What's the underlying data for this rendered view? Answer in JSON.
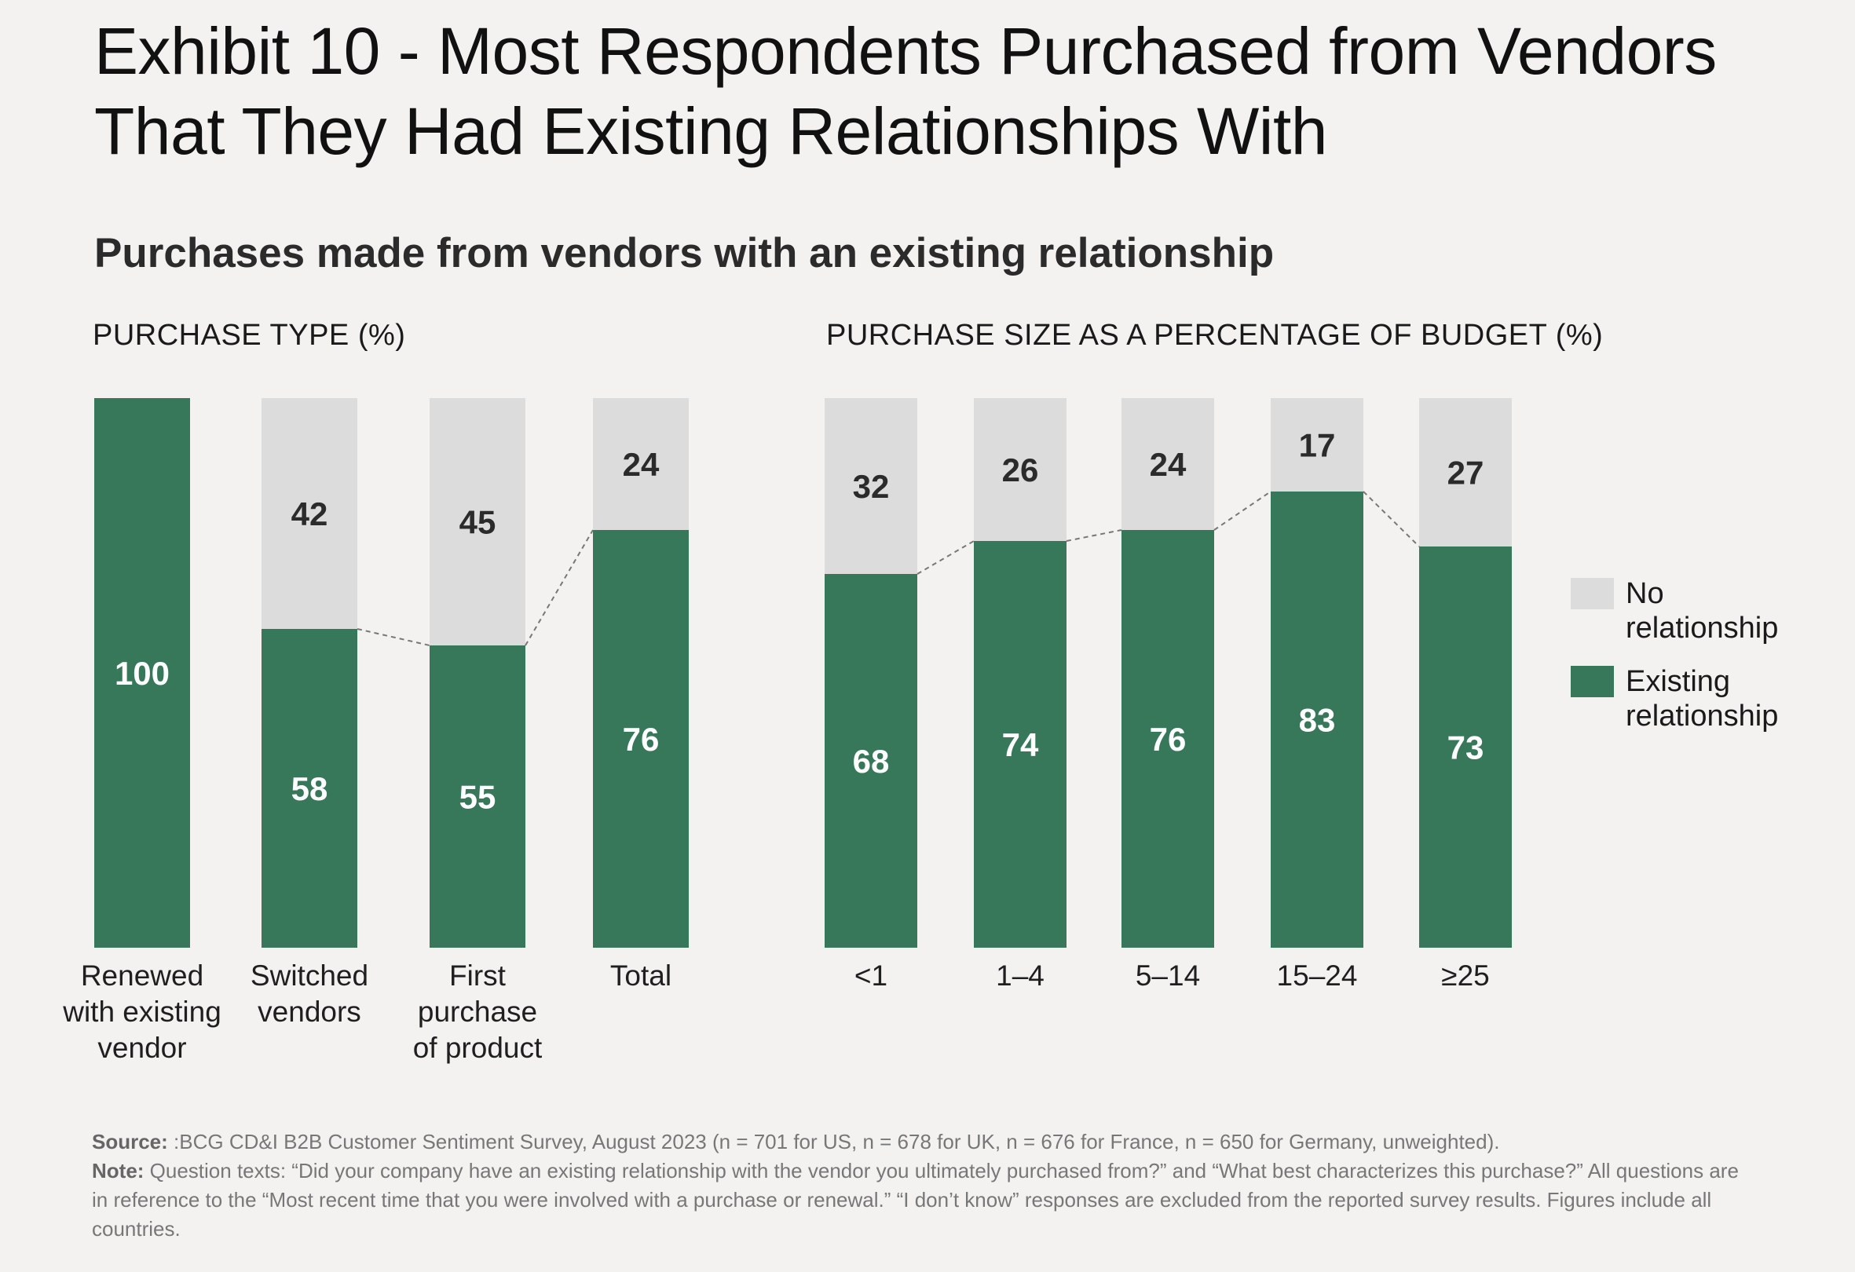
{
  "title": "Exhibit 10 - Most Respondents Purchased from Vendors That They Had Existing Relationships With",
  "subtitle": "Purchases made from vendors with an existing relationship",
  "colors": {
    "existing": "#38785a",
    "none": "#dcdcdc",
    "existing_text": "#ffffff",
    "none_text": "#2b2b2b",
    "connector": "#777777"
  },
  "legend": {
    "no_relationship": "No relationship",
    "existing_relationship": "Existing relationship"
  },
  "chart_data": [
    {
      "type": "bar",
      "stacked": true,
      "title": "PURCHASE TYPE (%)",
      "categories": [
        "Renewed with existing vendor",
        "Switched vendors",
        "First purchase of product",
        "Total"
      ],
      "series": [
        {
          "name": "Existing relationship",
          "values": [
            100,
            58,
            55,
            76
          ]
        },
        {
          "name": "No relationship",
          "values": [
            0,
            42,
            45,
            24
          ]
        }
      ],
      "ylim": [
        0,
        100
      ]
    },
    {
      "type": "bar",
      "stacked": true,
      "title": "PURCHASE SIZE AS A PERCENTAGE OF BUDGET (%)",
      "categories": [
        "<1",
        "1–4",
        "5–14",
        "15–24",
        "≥25"
      ],
      "series": [
        {
          "name": "Existing relationship",
          "values": [
            68,
            74,
            76,
            83,
            73
          ]
        },
        {
          "name": "No relationship",
          "values": [
            32,
            26,
            24,
            17,
            27
          ]
        }
      ],
      "ylim": [
        0,
        100
      ]
    }
  ],
  "footer": {
    "source_label": "Source:",
    "source_text": " :BCG CD&I B2B Customer Sentiment Survey, August 2023 (n = 701 for US, n = 678 for UK, n = 676 for France, n = 650 for Germany, unweighted).",
    "note_label": "Note:",
    "note_text": " Question texts: “Did your company have an existing relationship with the vendor you ultimately purchased from?” and “What best characterizes this purchase?” All questions are in reference to the “Most recent time that you were involved with a purchase or renewal.” “I don’t know” responses are excluded from the reported survey results. Figures include all countries."
  }
}
